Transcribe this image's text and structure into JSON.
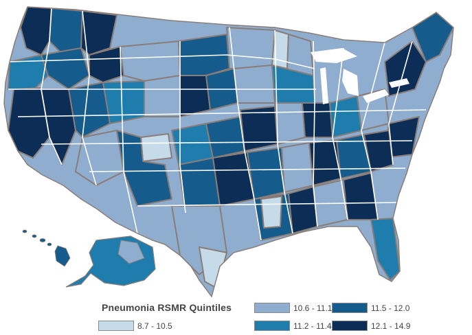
{
  "legend": {
    "title": "Pneumonia RSMR Quintiles",
    "items": [
      {
        "label": "8.7 - 10.5",
        "color": "#c6dbea"
      },
      {
        "label": "10.6 - 11.1",
        "color": "#8fadcf"
      },
      {
        "label": "11.2 - 11.4",
        "color": "#1f7dae"
      },
      {
        "label": "11.5 - 12.0",
        "color": "#155c8c"
      },
      {
        "label": "12.1 - 14.9",
        "color": "#0c2e56"
      }
    ]
  },
  "map": {
    "region": "United States",
    "boundary_color": "#8a7d78",
    "state_line_color": "#ffffff"
  }
}
